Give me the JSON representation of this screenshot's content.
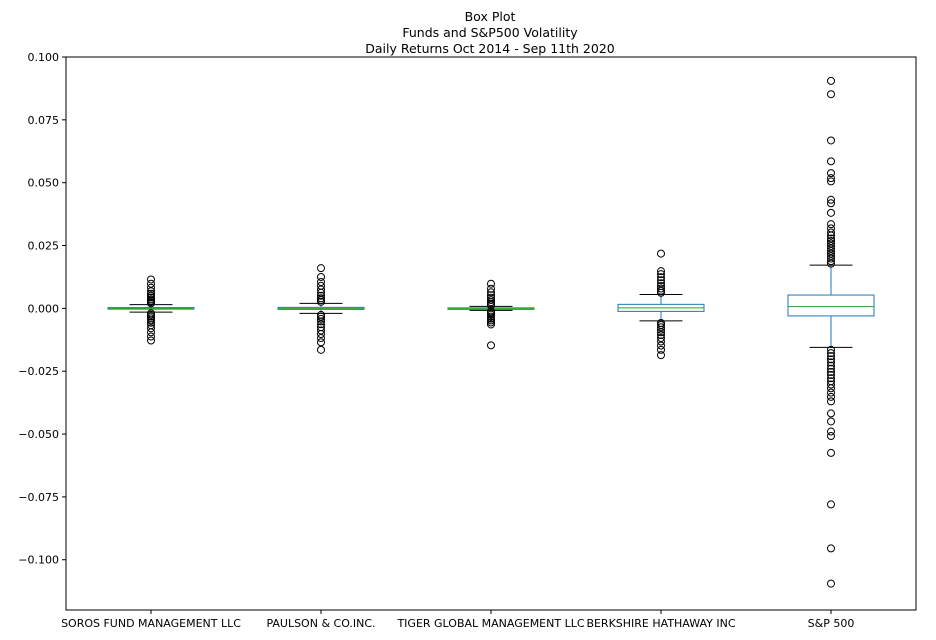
{
  "chart_data": {
    "type": "box",
    "title": [
      "Box Plot",
      "Funds and S&P500 Volatility",
      "Daily Returns Oct 2014 - Sep 11th 2020"
    ],
    "xlabel": "",
    "ylabel": "",
    "ylim": [
      -0.12,
      0.1
    ],
    "yticks": [
      0.1,
      0.075,
      0.05,
      0.025,
      0.0,
      -0.025,
      -0.05,
      -0.075,
      -0.1
    ],
    "ytick_labels": [
      "0.100",
      "0.075",
      "0.050",
      "0.025",
      "0.000",
      "−0.025",
      "−0.050",
      "−0.075",
      "−0.100"
    ],
    "grid": false,
    "colors": {
      "box": "#1f77b4",
      "median": "#2ca02c",
      "whisker": "#000000",
      "flier": "#000000"
    },
    "series": [
      {
        "name": "SOROS FUND MANAGEMENT LLC",
        "whisker_low": -0.0015,
        "q1": -0.0003,
        "median": 0.0,
        "q3": 0.0003,
        "whisker_high": 0.0015,
        "fliers": [
          0.0115,
          0.0098,
          0.0082,
          0.0068,
          0.0058,
          0.005,
          0.0043,
          0.0036,
          0.003,
          0.0025,
          0.002,
          -0.002,
          -0.0026,
          -0.0033,
          -0.004,
          -0.0048,
          -0.0057,
          -0.0067,
          -0.0079,
          -0.0095,
          -0.0112,
          -0.0128
        ]
      },
      {
        "name": "PAULSON & CO.INC.",
        "whisker_low": -0.002,
        "q1": -0.0004,
        "median": 0.0,
        "q3": 0.0004,
        "whisker_high": 0.002,
        "fliers": [
          0.016,
          0.0125,
          0.0105,
          0.009,
          0.0075,
          0.0062,
          0.005,
          0.004,
          0.0033,
          0.0026,
          -0.0026,
          -0.0033,
          -0.0042,
          -0.0052,
          -0.0063,
          -0.0075,
          -0.0088,
          -0.0102,
          -0.0118,
          -0.0135,
          -0.0165
        ]
      },
      {
        "name": "TIGER GLOBAL MANAGEMENT LLC",
        "whisker_low": -0.0008,
        "q1": -0.0002,
        "median": 0.0,
        "q3": 0.0002,
        "whisker_high": 0.0008,
        "fliers": [
          0.0098,
          0.0078,
          0.0064,
          0.0052,
          0.0042,
          0.0033,
          0.0025,
          0.0018,
          0.0012,
          -0.0012,
          -0.0018,
          -0.0025,
          -0.0033,
          -0.0041,
          -0.0048,
          -0.0056,
          -0.0064,
          -0.0147
        ]
      },
      {
        "name": "BERKSHIRE HATHAWAY INC",
        "whisker_low": -0.005,
        "q1": -0.0012,
        "median": 0.0002,
        "q3": 0.0016,
        "whisker_high": 0.0055,
        "fliers": [
          0.0218,
          0.0148,
          0.0136,
          0.0124,
          0.0112,
          0.01,
          0.0089,
          0.0079,
          0.007,
          0.0062,
          -0.0058,
          -0.0066,
          -0.0075,
          -0.0085,
          -0.0095,
          -0.0106,
          -0.0118,
          -0.0132,
          -0.0148,
          -0.0165,
          -0.0186
        ]
      },
      {
        "name": "S&P 500",
        "whisker_low": -0.0155,
        "q1": -0.003,
        "median": 0.0007,
        "q3": 0.0053,
        "whisker_high": 0.0172,
        "fliers": [
          0.0905,
          0.0852,
          0.0668,
          0.0585,
          0.0538,
          0.0518,
          0.0505,
          0.0432,
          0.0418,
          0.038,
          0.0335,
          0.0318,
          0.0302,
          0.029,
          0.0278,
          0.0268,
          0.0258,
          0.0248,
          0.0238,
          0.0228,
          0.0218,
          0.0208,
          0.0198,
          0.0188,
          0.0178,
          -0.0165,
          -0.0178,
          -0.019,
          -0.0203,
          -0.0215,
          -0.0228,
          -0.024,
          -0.0253,
          -0.0265,
          -0.0278,
          -0.029,
          -0.0303,
          -0.0318,
          -0.0335,
          -0.0352,
          -0.037,
          -0.0418,
          -0.045,
          -0.049,
          -0.0508,
          -0.0575,
          -0.078,
          -0.0955,
          -0.1095
        ]
      }
    ]
  }
}
